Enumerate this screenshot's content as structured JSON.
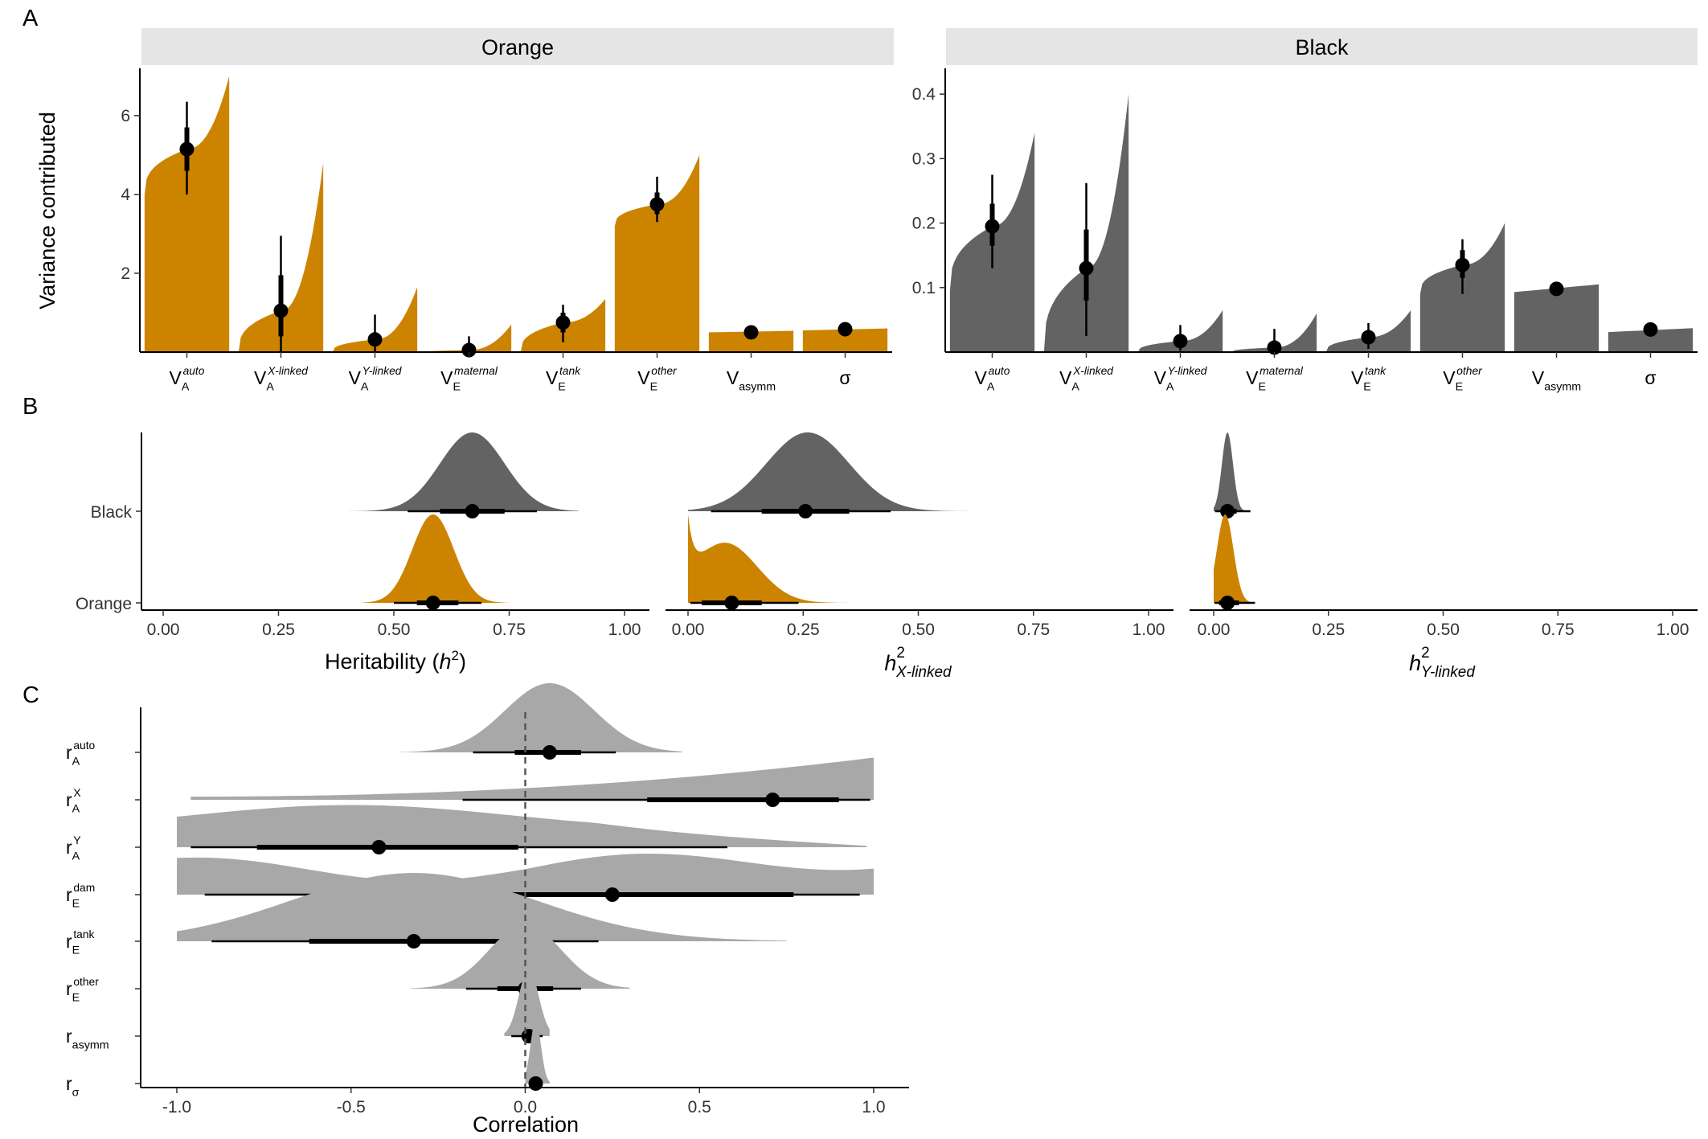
{
  "chart_data": [
    {
      "panel": "A",
      "type": "violin",
      "ylabel": "Variance contributed",
      "categories": [
        {
          "base": "V",
          "sub": "A",
          "sup": "auto"
        },
        {
          "base": "V",
          "sub": "A",
          "sup": "X-linked"
        },
        {
          "base": "V",
          "sub": "A",
          "sup": "Y-linked"
        },
        {
          "base": "V",
          "sub": "E",
          "sup": "maternal"
        },
        {
          "base": "V",
          "sub": "E",
          "sup": "tank"
        },
        {
          "base": "V",
          "sub": "E",
          "sup": "other"
        },
        {
          "base": "V",
          "sub": "asymm",
          "sup": ""
        },
        {
          "base": "σ",
          "sub": "",
          "sup": ""
        }
      ],
      "facets": [
        {
          "title": "Orange",
          "color": "#cc8400",
          "ylim": [
            0,
            7.2
          ],
          "yticks": [
            2,
            4,
            6
          ],
          "median": [
            5.15,
            1.05,
            0.32,
            0.05,
            0.75,
            3.75,
            0.5,
            0.58
          ],
          "inner": [
            [
              4.6,
              5.7
            ],
            [
              0.4,
              1.95
            ],
            [
              0.15,
              0.5
            ],
            [
              0.0,
              0.12
            ],
            [
              0.5,
              1.0
            ],
            [
              3.5,
              4.05
            ],
            [
              0.48,
              0.52
            ],
            [
              0.56,
              0.6
            ]
          ],
          "outer": [
            [
              4.0,
              6.35
            ],
            [
              0.0,
              2.95
            ],
            [
              0.0,
              0.95
            ],
            [
              0.0,
              0.4
            ],
            [
              0.25,
              1.2
            ],
            [
              3.3,
              4.45
            ],
            [
              0.46,
              0.54
            ],
            [
              0.54,
              0.62
            ]
          ],
          "range": [
            [
              4.0,
              7.0
            ],
            [
              0.0,
              4.8
            ],
            [
              0.0,
              1.65
            ],
            [
              0.0,
              0.7
            ],
            [
              0.0,
              1.35
            ],
            [
              3.2,
              5.0
            ],
            [
              0.5,
              0.54
            ],
            [
              0.55,
              0.6
            ]
          ]
        },
        {
          "title": "Black",
          "color": "#636363",
          "ylim": [
            0,
            0.44
          ],
          "yticks": [
            0.1,
            0.2,
            0.3,
            0.4
          ],
          "median": [
            0.195,
            0.13,
            0.017,
            0.007,
            0.023,
            0.135,
            0.098,
            0.035
          ],
          "inner": [
            [
              0.165,
              0.23
            ],
            [
              0.08,
              0.19
            ],
            [
              0.009,
              0.026
            ],
            [
              0.002,
              0.014
            ],
            [
              0.013,
              0.034
            ],
            [
              0.115,
              0.158
            ],
            [
              0.096,
              0.1
            ],
            [
              0.033,
              0.037
            ]
          ],
          "outer": [
            [
              0.13,
              0.275
            ],
            [
              0.025,
              0.262
            ],
            [
              0.002,
              0.042
            ],
            [
              0.0,
              0.036
            ],
            [
              0.005,
              0.045
            ],
            [
              0.09,
              0.175
            ],
            [
              0.094,
              0.102
            ],
            [
              0.031,
              0.039
            ]
          ],
          "range": [
            [
              0.095,
              0.34
            ],
            [
              0.0,
              0.4
            ],
            [
              0.0,
              0.065
            ],
            [
              0.0,
              0.06
            ],
            [
              0.0,
              0.065
            ],
            [
              0.09,
              0.2
            ],
            [
              0.093,
              0.105
            ],
            [
              0.031,
              0.037
            ]
          ]
        }
      ]
    },
    {
      "panel": "B",
      "type": "halfeye",
      "groups": [
        "Black",
        "Orange"
      ],
      "xlim": [
        0,
        1
      ],
      "xticks": [
        "0.00",
        "0.25",
        "0.50",
        "0.75",
        "1.00"
      ],
      "facets": [
        {
          "xlabel": "Heritability (h²)",
          "Black": {
            "median": 0.67,
            "inner": [
              0.6,
              0.74
            ],
            "outer": [
              0.53,
              0.81
            ],
            "range": [
              0.4,
              0.9
            ],
            "mode": 0.67,
            "spread": 0.07
          },
          "Orange": {
            "median": 0.585,
            "inner": [
              0.55,
              0.64
            ],
            "outer": [
              0.5,
              0.69
            ],
            "range": [
              0.43,
              0.75
            ],
            "mode": 0.585,
            "spread": 0.045
          }
        },
        {
          "xlabel": "h² X-linked",
          "Black": {
            "median": 0.255,
            "inner": [
              0.16,
              0.35
            ],
            "outer": [
              0.05,
              0.44
            ],
            "range": [
              0.0,
              0.62
            ],
            "mode": 0.26,
            "spread": 0.09
          },
          "Orange": {
            "median": 0.095,
            "inner": [
              0.03,
              0.16
            ],
            "outer": [
              0.005,
              0.24
            ],
            "range": [
              0.0,
              0.37
            ],
            "mode": 0.08,
            "spread": 0.07
          },
          "spike_at_zero": true
        },
        {
          "xlabel": "h² Y-linked",
          "Black": {
            "median": 0.03,
            "inner": [
              0.015,
              0.05
            ],
            "outer": [
              0.003,
              0.08
            ],
            "range": [
              0.0,
              0.14
            ],
            "mode": 0.03,
            "spread": 0.012
          },
          "Orange": {
            "median": 0.03,
            "inner": [
              0.012,
              0.055
            ],
            "outer": [
              0.002,
              0.09
            ],
            "range": [
              0.0,
              0.14
            ],
            "mode": 0.025,
            "spread": 0.018
          }
        }
      ]
    },
    {
      "panel": "C",
      "type": "halfeye",
      "xlabel": "Correlation",
      "xlim": [
        -1.1,
        1.1
      ],
      "xticks": [
        "-1.0",
        "-0.5",
        "0.0",
        "0.5",
        "1.0"
      ],
      "reference_line": 0,
      "color": "#a8a8a8",
      "rows": [
        {
          "base": "r",
          "sub": "A",
          "sup": "auto",
          "median": 0.07,
          "inner": [
            -0.03,
            0.16
          ],
          "outer": [
            -0.15,
            0.26
          ],
          "range": [
            -0.36,
            0.45
          ]
        },
        {
          "base": "r",
          "sub": "A",
          "sup": "X",
          "median": 0.71,
          "inner": [
            0.35,
            0.9
          ],
          "outer": [
            -0.18,
            0.99
          ],
          "range": [
            -0.96,
            1.0
          ]
        },
        {
          "base": "r",
          "sub": "A",
          "sup": "Y",
          "median": -0.42,
          "inner": [
            -0.77,
            -0.02
          ],
          "outer": [
            -0.96,
            0.58
          ],
          "range": [
            -1.0,
            0.98
          ]
        },
        {
          "base": "r",
          "sub": "E",
          "sup": "dam",
          "median": 0.25,
          "inner": [
            -0.5,
            0.77
          ],
          "outer": [
            -0.92,
            0.96
          ],
          "range": [
            -1.0,
            1.0
          ]
        },
        {
          "base": "r",
          "sub": "E",
          "sup": "tank",
          "median": -0.32,
          "inner": [
            -0.62,
            -0.06
          ],
          "outer": [
            -0.9,
            0.21
          ],
          "range": [
            -1.0,
            0.75
          ]
        },
        {
          "base": "r",
          "sub": "E",
          "sup": "other",
          "median": 0.0,
          "inner": [
            -0.08,
            0.08
          ],
          "outer": [
            -0.17,
            0.16
          ],
          "range": [
            -0.33,
            0.3
          ]
        },
        {
          "base": "r",
          "sub": "asymm",
          "sup": "",
          "median": 0.01,
          "inner": [
            -0.01,
            0.03
          ],
          "outer": [
            -0.04,
            0.05
          ],
          "range": [
            -0.06,
            0.07
          ]
        },
        {
          "base": "r",
          "sub": "σ",
          "sup": "",
          "median": 0.03,
          "inner": [
            0.02,
            0.04
          ],
          "outer": [
            0.01,
            0.05
          ],
          "range": [
            0.0,
            0.07
          ]
        }
      ]
    }
  ],
  "panel_labels": [
    "A",
    "B",
    "C"
  ]
}
